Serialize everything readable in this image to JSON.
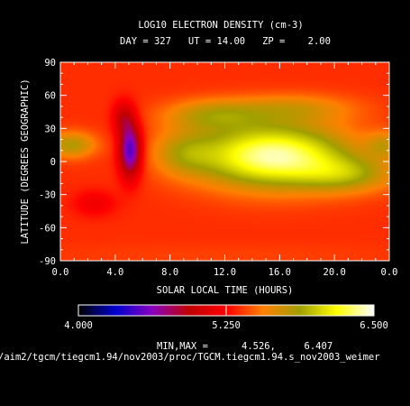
{
  "title_line1": "LOG10 ELECTRON DENSITY (cm-3)",
  "title_line2": "DAY = 327   UT = 14.00   ZP =    2.00",
  "minmax_label": "MIN,MAX =",
  "minmax_values": "4.526,     6.407",
  "file_path": "/aim2/tgcm/tiegcm1.94/nov2003/proc/TGCM.tiegcm1.94.s_nov2003_weimer",
  "chart_data": {
    "type": "heatmap",
    "xlabel": "SOLAR LOCAL TIME (HOURS)",
    "ylabel": "LATITUDE (DEGREES GEOGRAPHIC)",
    "x_ticks": [
      "0.0",
      "4.0",
      "8.0",
      "12.0",
      "16.0",
      "20.0",
      "0.0"
    ],
    "x_tick_values": [
      0,
      4,
      8,
      12,
      16,
      20,
      24
    ],
    "y_ticks": [
      "90",
      "60",
      "30",
      "0",
      "-30",
      "-60",
      "-90"
    ],
    "y_tick_values": [
      90,
      60,
      30,
      0,
      -30,
      -60,
      -90
    ],
    "xlim": [
      0,
      24
    ],
    "ylim": [
      -90,
      90
    ],
    "colorbar": {
      "labels": [
        "4.000",
        "5.250",
        "6.500"
      ],
      "range": [
        4.0,
        6.5
      ],
      "marker_value": 5.25,
      "colors": [
        "#000000",
        "#0000d0",
        "#8a00c0",
        "#c00000",
        "#ff0000",
        "#ff8000",
        "#a0a000",
        "#ffff00",
        "#ffffff"
      ]
    },
    "min": 4.526,
    "max": 6.407
  }
}
